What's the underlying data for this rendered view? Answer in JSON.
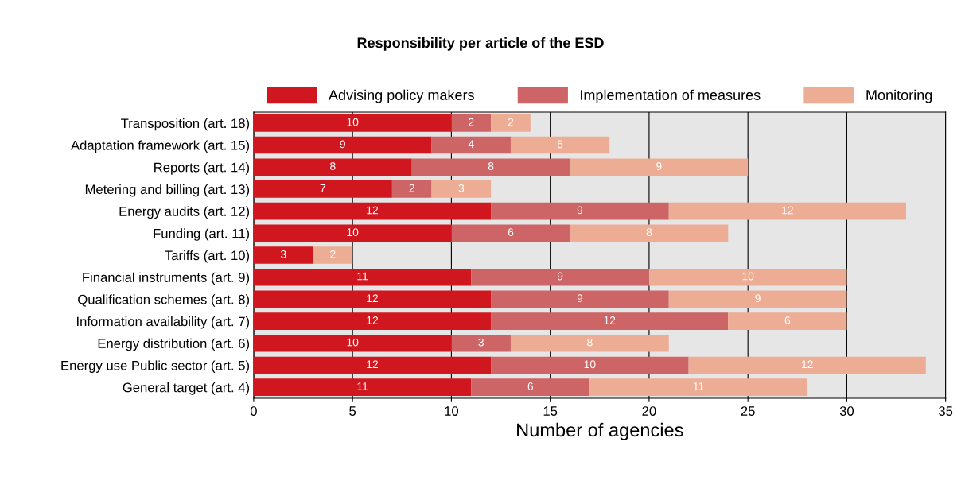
{
  "chart_data": {
    "type": "bar",
    "orientation": "horizontal",
    "stacked": true,
    "title": "Responsibility per article of the ESD",
    "xlabel": "Number of agencies",
    "categories": [
      "Transposition (art. 18)",
      "Adaptation framework (art. 15)",
      "Reports (art. 14)",
      "Metering and billing (art. 13)",
      "Energy audits (art. 12)",
      "Funding (art. 11)",
      "Tariffs (art. 10)",
      "Financial instruments (art. 9)",
      "Qualification schemes (art. 8)",
      "Information availability (art. 7)",
      "Energy distribution (art. 6)",
      "Energy use Public sector (art. 5)",
      "General target (art. 4)"
    ],
    "series": [
      {
        "name": "Advising policy makers",
        "color": "#d0161e",
        "values": [
          10,
          9,
          8,
          7,
          12,
          10,
          3,
          11,
          12,
          12,
          10,
          12,
          11
        ]
      },
      {
        "name": "Implementation of measures",
        "color": "#cd6566",
        "values": [
          2,
          4,
          8,
          2,
          9,
          6,
          null,
          9,
          9,
          12,
          3,
          10,
          6
        ]
      },
      {
        "name": "Monitoring",
        "color": "#edad95",
        "values": [
          2,
          5,
          9,
          3,
          12,
          8,
          2,
          10,
          9,
          6,
          8,
          12,
          11
        ]
      }
    ],
    "xlim": [
      0,
      35
    ],
    "xticks": [
      0,
      5,
      10,
      15,
      20,
      25,
      30,
      35
    ],
    "grid": "x",
    "legend": "top",
    "data_labels": true
  }
}
